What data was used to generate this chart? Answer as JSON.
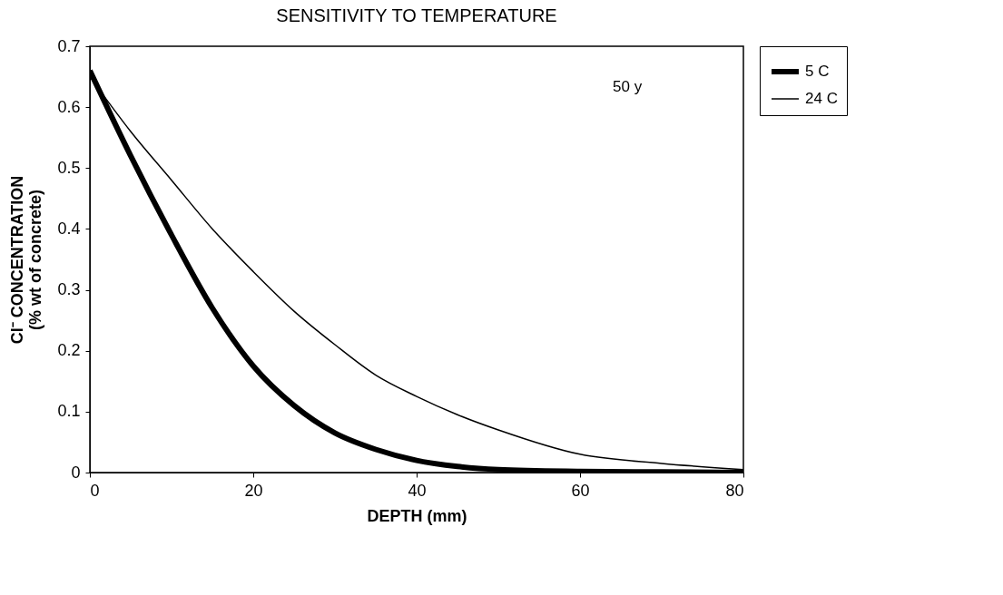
{
  "chart_data": {
    "type": "line",
    "title": "SENSITIVITY TO TEMPERATURE",
    "xlabel": "DEPTH (mm)",
    "ylabel": "Cl⁻ CONCENTRATION\n(% wt of concrete)",
    "x": [
      0,
      5,
      10,
      15,
      20,
      25,
      30,
      35,
      40,
      45,
      50,
      60,
      70,
      80
    ],
    "series": [
      {
        "name": "5 C",
        "color": "#000000",
        "values": [
          0.66,
          0.52,
          0.39,
          0.27,
          0.175,
          0.11,
          0.065,
          0.038,
          0.02,
          0.01,
          0.005,
          0.002,
          0.001,
          0.0
        ]
      },
      {
        "name": "24 C",
        "color": "#000000",
        "values": [
          0.65,
          0.56,
          0.48,
          0.4,
          0.33,
          0.265,
          0.21,
          0.16,
          0.125,
          0.095,
          0.07,
          0.03,
          0.015,
          0.005
        ]
      }
    ],
    "xlim": [
      0,
      80
    ],
    "xticks": [
      0,
      20,
      40,
      60,
      80
    ],
    "ylim": [
      0,
      0.7
    ],
    "yticks": [
      0,
      0.1,
      0.2,
      0.3,
      0.4,
      0.5,
      0.6,
      0.7
    ],
    "annotations": [
      "50 y"
    ],
    "legend": "right",
    "grid": false,
    "marker": "none",
    "line_style": "solid"
  }
}
